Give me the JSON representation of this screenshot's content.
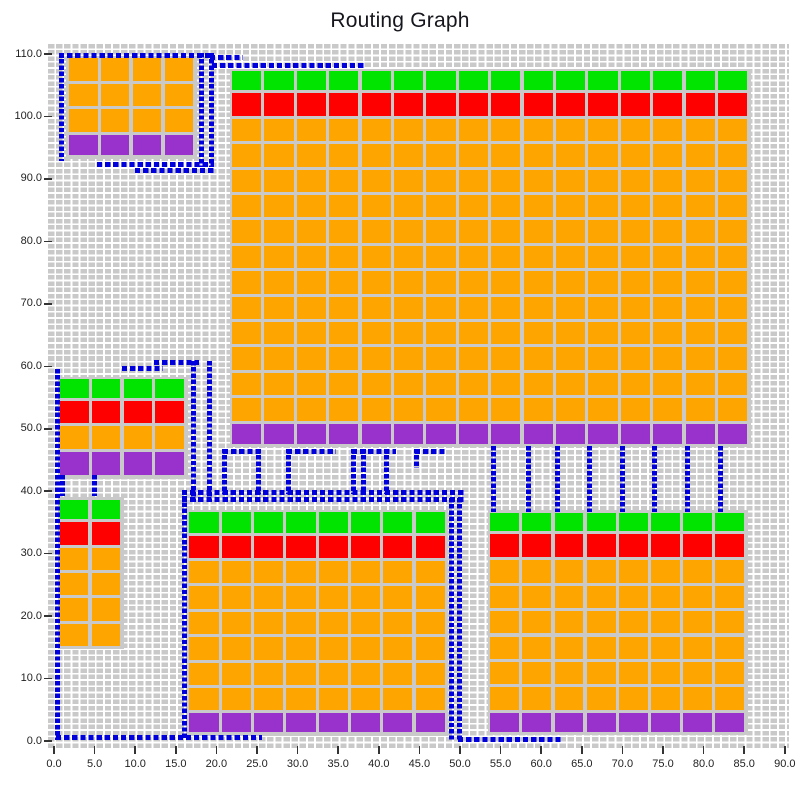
{
  "title": "Routing Graph",
  "colors": {
    "green": "#00e400",
    "red": "#ff0000",
    "orange": "#ffa500",
    "purple": "#9932cc",
    "route_blue": "#0000dd",
    "grid_gray": "#c9c9c9",
    "grout_gray": "#c9c9c9",
    "text": "#222222"
  },
  "chart_data": {
    "type": "heatmap",
    "subtype": "routing-grid-with-cell-blocks-and-dashed-routes",
    "title": "Routing Graph",
    "xlabel": "",
    "ylabel": "",
    "xlim": [
      0,
      90
    ],
    "ylim": [
      0,
      110
    ],
    "grid": {
      "cell_w": 1,
      "cell_h": 1,
      "style": "dashed-gray-cells",
      "legend": "none"
    },
    "x_ticks": {
      "values": [
        0,
        5,
        10,
        15,
        20,
        25,
        30,
        35,
        40,
        45,
        50,
        55,
        60,
        65,
        70,
        75,
        80,
        85,
        90
      ],
      "labels": [
        "0.0",
        "5.0",
        "10.0",
        "15.0",
        "20.0",
        "25.0",
        "30.0",
        "35.0",
        "40.0",
        "45.0",
        "50.0",
        "55.0",
        "60.0",
        "65.0",
        "70.0",
        "75.0",
        "80.0",
        "85.0",
        "90.0"
      ]
    },
    "y_ticks": {
      "values": [
        0,
        10,
        20,
        30,
        40,
        50,
        60,
        70,
        80,
        90,
        100,
        110
      ],
      "labels": [
        "0.0",
        "10.0",
        "20.0",
        "30.0",
        "40.0",
        "50.0",
        "60.0",
        "70.0",
        "80.0",
        "90.0",
        "100.0",
        "110.0"
      ]
    },
    "blocks": [
      {
        "name": "top-left",
        "x": 1.7,
        "y_top": 109.5,
        "cols": 4,
        "col_w": 3.93,
        "rows": [
          {
            "color": "orange",
            "h": 4.1,
            "repeat": 3
          },
          {
            "color": "purple",
            "h": 3.7
          }
        ]
      },
      {
        "name": "top-right-large",
        "x": 21.8,
        "y_top": 107.4,
        "cols": 16,
        "col_w": 3.99,
        "rows": [
          {
            "color": "green",
            "h": 3.5
          },
          {
            "color": "red",
            "h": 4.1
          },
          {
            "color": "orange",
            "h": 4.07,
            "repeat": 12
          },
          {
            "color": "purple",
            "h": 3.7
          }
        ]
      },
      {
        "name": "mid-left",
        "x": 0.62,
        "y_top": 58.1,
        "cols": 4,
        "col_w": 3.91,
        "rows": [
          {
            "color": "green",
            "h": 3.5
          },
          {
            "color": "red",
            "h": 4.05
          },
          {
            "color": "orange",
            "h": 4.1
          },
          {
            "color": "purple",
            "h": 4.25
          }
        ]
      },
      {
        "name": "small-left",
        "x": 0.62,
        "y_top": 38.8,
        "cols": 2,
        "col_w": 3.88,
        "rows": [
          {
            "color": "green",
            "h": 3.6
          },
          {
            "color": "red",
            "h": 4.1
          },
          {
            "color": "orange",
            "h": 4.05,
            "repeat": 4
          }
        ]
      },
      {
        "name": "bottom-middle",
        "x": 16.56,
        "y_top": 36.8,
        "cols": 8,
        "col_w": 3.98,
        "rows": [
          {
            "color": "green",
            "h": 3.8
          },
          {
            "color": "red",
            "h": 4.0
          },
          {
            "color": "orange",
            "h": 4.07,
            "repeat": 6
          },
          {
            "color": "purple",
            "h": 3.5
          }
        ]
      },
      {
        "name": "bottom-right",
        "x": 53.6,
        "y_top": 36.7,
        "cols": 8,
        "col_w": 3.96,
        "rows": [
          {
            "color": "green",
            "h": 3.4
          },
          {
            "color": "red",
            "h": 4.2
          },
          {
            "color": "orange",
            "h": 4.07,
            "repeat": 6
          },
          {
            "color": "purple",
            "h": 3.5
          }
        ]
      }
    ],
    "routes": [
      {
        "x1": 0.9,
        "y1": 109.8,
        "x2": 19.4,
        "y2": 109.8
      },
      {
        "x1": 0.9,
        "y1": 93.2,
        "x2": 0.9,
        "y2": 109.8
      },
      {
        "x1": 18.2,
        "y1": 92.3,
        "x2": 18.2,
        "y2": 109.8
      },
      {
        "x1": 19.4,
        "y1": 92.3,
        "x2": 19.4,
        "y2": 109.8
      },
      {
        "x1": 5.6,
        "y1": 92.3,
        "x2": 19.4,
        "y2": 92.3
      },
      {
        "x1": 10.2,
        "y1": 91.3,
        "x2": 19.4,
        "y2": 91.3
      },
      {
        "x1": 19.4,
        "y1": 109.4,
        "x2": 23.0,
        "y2": 109.4
      },
      {
        "x1": 19.7,
        "y1": 108.2,
        "x2": 38.1,
        "y2": 108.2
      },
      {
        "x1": 0.45,
        "y1": 0.55,
        "x2": 0.45,
        "y2": 59.3
      },
      {
        "x1": 8.6,
        "y1": 59.6,
        "x2": 13.2,
        "y2": 59.6
      },
      {
        "x1": 12.6,
        "y1": 60.6,
        "x2": 17.6,
        "y2": 60.6
      },
      {
        "x1": 17.2,
        "y1": 38.6,
        "x2": 17.2,
        "y2": 60.6
      },
      {
        "x1": 19.2,
        "y1": 38.6,
        "x2": 19.2,
        "y2": 60.6
      },
      {
        "x1": 16.05,
        "y1": 0.55,
        "x2": 16.05,
        "y2": 39.8
      },
      {
        "x1": 16.05,
        "y1": 39.8,
        "x2": 50.35,
        "y2": 39.8
      },
      {
        "x1": 16.05,
        "y1": 38.6,
        "x2": 50.35,
        "y2": 38.6
      },
      {
        "x1": 48.9,
        "y1": 0.45,
        "x2": 48.9,
        "y2": 38.6
      },
      {
        "x1": 49.95,
        "y1": 0.45,
        "x2": 49.95,
        "y2": 38.6
      },
      {
        "x1": 0.45,
        "y1": 0.55,
        "x2": 25.4,
        "y2": 0.55
      },
      {
        "x1": 49.95,
        "y1": 0.3,
        "x2": 62.3,
        "y2": 0.3
      },
      {
        "x1": 1.0,
        "y1": 39.5,
        "x2": 1.0,
        "y2": 42.2
      },
      {
        "x1": 5.0,
        "y1": 39.5,
        "x2": 5.0,
        "y2": 42.2
      },
      {
        "x1": 21.0,
        "y1": 39.8,
        "x2": 21.0,
        "y2": 46.4
      },
      {
        "x1": 25.2,
        "y1": 39.8,
        "x2": 25.2,
        "y2": 46.4
      },
      {
        "x1": 28.9,
        "y1": 39.8,
        "x2": 28.9,
        "y2": 46.4
      },
      {
        "x1": 36.9,
        "y1": 39.8,
        "x2": 36.9,
        "y2": 46.4
      },
      {
        "x1": 38.1,
        "y1": 39.8,
        "x2": 38.1,
        "y2": 46.4
      },
      {
        "x1": 40.9,
        "y1": 39.8,
        "x2": 40.9,
        "y2": 46.4
      },
      {
        "x1": 44.7,
        "y1": 44.0,
        "x2": 44.7,
        "y2": 46.4
      },
      {
        "x1": 21.0,
        "y1": 46.4,
        "x2": 25.2,
        "y2": 46.4
      },
      {
        "x1": 28.9,
        "y1": 46.4,
        "x2": 34.5,
        "y2": 46.4
      },
      {
        "x1": 36.9,
        "y1": 46.4,
        "x2": 41.9,
        "y2": 46.4
      },
      {
        "x1": 44.7,
        "y1": 46.4,
        "x2": 47.9,
        "y2": 46.4
      },
      {
        "x1": 54.1,
        "y1": 37.0,
        "x2": 54.1,
        "y2": 46.9
      },
      {
        "x1": 58.4,
        "y1": 37.0,
        "x2": 58.4,
        "y2": 46.9
      },
      {
        "x1": 62.0,
        "y1": 37.0,
        "x2": 62.0,
        "y2": 46.9
      },
      {
        "x1": 65.9,
        "y1": 37.0,
        "x2": 65.9,
        "y2": 46.9
      },
      {
        "x1": 70.0,
        "y1": 37.0,
        "x2": 70.0,
        "y2": 46.9
      },
      {
        "x1": 73.9,
        "y1": 37.0,
        "x2": 73.9,
        "y2": 46.9
      },
      {
        "x1": 78.0,
        "y1": 37.0,
        "x2": 78.0,
        "y2": 46.9
      },
      {
        "x1": 82.1,
        "y1": 37.0,
        "x2": 82.1,
        "y2": 46.9
      }
    ]
  }
}
